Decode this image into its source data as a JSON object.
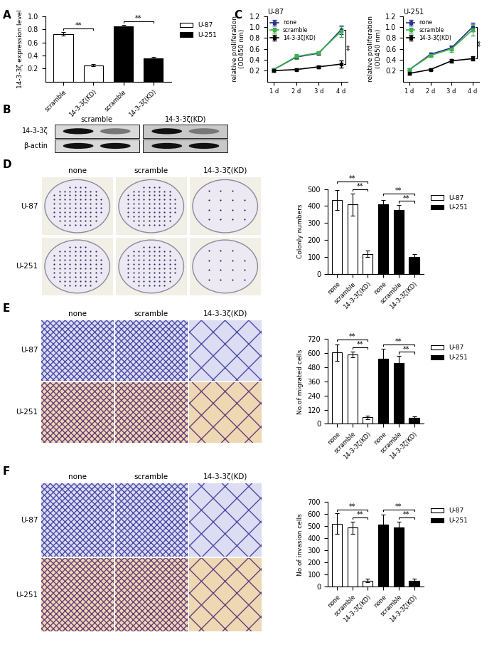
{
  "chart_data": [
    {
      "type": "bar",
      "panel": "A",
      "ylabel": "14-3-3ζ expression level",
      "categories": [
        "scramble",
        "14-3-3ζ(KD)",
        "scramble",
        "14-3-3ζ(KD)"
      ],
      "series": [
        {
          "name": "U-87",
          "color": "#ffffff",
          "values": [
            0.73,
            0.25,
            null,
            null
          ],
          "errors": [
            0.03,
            0.02,
            null,
            null
          ]
        },
        {
          "name": "U-251",
          "color": "#000000",
          "values": [
            null,
            null,
            0.85,
            0.35
          ],
          "errors": [
            null,
            null,
            0.02,
            0.03
          ]
        }
      ],
      "significance": [
        {
          "pair": [
            0,
            1
          ],
          "label": "**"
        },
        {
          "pair": [
            2,
            3
          ],
          "label": "**"
        }
      ],
      "ylim": [
        0,
        1.0
      ],
      "yticks": [
        0.2,
        0.4,
        0.6,
        0.8,
        1.0
      ],
      "legend": "right"
    },
    {
      "type": "line",
      "panel": "C",
      "title": "U-87",
      "ylabel": "relative proliferation\n(OD450 nm)",
      "categories": [
        "1 d",
        "2 d",
        "3 d",
        "4 d"
      ],
      "series": [
        {
          "name": "none",
          "color": "#2b2f8f",
          "marker": "square",
          "values": [
            0.22,
            0.45,
            0.52,
            0.95
          ],
          "errors": [
            0.02,
            0.03,
            0.03,
            0.08
          ]
        },
        {
          "name": "scramble",
          "color": "#3cb34a",
          "marker": "square",
          "values": [
            0.22,
            0.46,
            0.53,
            0.92
          ],
          "errors": [
            0.02,
            0.05,
            0.03,
            0.1
          ]
        },
        {
          "name": "14-3-3ζ(KD)",
          "color": "#000000",
          "marker": "square",
          "values": [
            0.2,
            0.22,
            0.27,
            0.32
          ],
          "errors": [
            0.02,
            0.02,
            0.03,
            0.06
          ]
        }
      ],
      "significance": [
        {
          "pair": [
            "none",
            "14-3-3ζ(KD)"
          ],
          "label": "**"
        }
      ],
      "ylim": [
        0,
        1.2
      ],
      "yticks": [
        0.2,
        0.4,
        0.6,
        0.8,
        1.0,
        1.2
      ],
      "legend": "upper left"
    },
    {
      "type": "line",
      "title": "U-251",
      "ylabel": "relative proliferation\n(OD450 nm)",
      "categories": [
        "1 d",
        "2 d",
        "3 d",
        "4 d"
      ],
      "series": [
        {
          "name": "none",
          "color": "#2b2f8f",
          "marker": "square",
          "values": [
            0.22,
            0.5,
            0.62,
            1.0
          ],
          "errors": [
            0.02,
            0.03,
            0.04,
            0.08
          ]
        },
        {
          "name": "scramble",
          "color": "#3cb34a",
          "marker": "square",
          "values": [
            0.22,
            0.48,
            0.6,
            0.95
          ],
          "errors": [
            0.02,
            0.03,
            0.05,
            0.1
          ]
        },
        {
          "name": "14-3-3ζ(KD)",
          "color": "#000000",
          "marker": "square",
          "values": [
            0.15,
            0.22,
            0.38,
            0.42
          ],
          "errors": [
            0.02,
            0.02,
            0.03,
            0.04
          ]
        }
      ],
      "significance": [
        {
          "pair": [
            "none",
            "14-3-3ζ(KD)"
          ],
          "label": "**"
        }
      ],
      "ylim": [
        0,
        1.2
      ],
      "yticks": [
        0.2,
        0.4,
        0.6,
        0.8,
        1.0,
        1.2
      ],
      "legend": "upper left"
    },
    {
      "type": "bar",
      "ylabel": "Colonly numbers",
      "categories": [
        "none",
        "scramble",
        "14-3-3ζ(KD)",
        "none",
        "scramble",
        "14-3-3ζ(KD)"
      ],
      "series": [
        {
          "name": "U-87",
          "color": "#ffffff",
          "values": [
            435,
            410,
            118,
            null,
            null,
            null
          ],
          "errors": [
            60,
            65,
            20,
            null,
            null,
            null
          ]
        },
        {
          "name": "U-251",
          "color": "#000000",
          "values": [
            null,
            null,
            null,
            410,
            375,
            100
          ],
          "errors": [
            null,
            null,
            null,
            25,
            30,
            18
          ]
        }
      ],
      "significance": [
        {
          "pair": [
            0,
            2
          ],
          "label": "**"
        },
        {
          "pair": [
            1,
            2
          ],
          "label": "**"
        },
        {
          "pair": [
            3,
            5
          ],
          "label": "**"
        },
        {
          "pair": [
            4,
            5
          ],
          "label": "**"
        }
      ],
      "ylim": [
        0,
        500
      ],
      "yticks": [
        0,
        100,
        200,
        300,
        400,
        500
      ],
      "legend": "right"
    },
    {
      "type": "bar",
      "ylabel": "No.of migrated cells",
      "categories": [
        "none",
        "scramble",
        "14-3-3ζ(KD)",
        "none",
        "scramble",
        "14-3-3ζ(KD)"
      ],
      "series": [
        {
          "name": "U-87",
          "color": "#ffffff",
          "values": [
            605,
            590,
            55,
            null,
            null,
            null
          ],
          "errors": [
            70,
            25,
            15,
            null,
            null,
            null
          ]
        },
        {
          "name": "U-251",
          "color": "#000000",
          "values": [
            null,
            null,
            null,
            555,
            515,
            50
          ],
          "errors": [
            null,
            null,
            null,
            80,
            60,
            15
          ]
        }
      ],
      "significance": [
        {
          "pair": [
            0,
            2
          ],
          "label": "**"
        },
        {
          "pair": [
            1,
            2
          ],
          "label": "**"
        },
        {
          "pair": [
            3,
            5
          ],
          "label": "**"
        },
        {
          "pair": [
            4,
            5
          ],
          "label": "**"
        }
      ],
      "ylim": [
        0,
        720
      ],
      "yticks": [
        0,
        120,
        240,
        360,
        480,
        600,
        720
      ],
      "legend": "right"
    },
    {
      "type": "bar",
      "ylabel": "No.of invasion cells",
      "categories": [
        "none",
        "scramble",
        "14-3-3ζ(KD)",
        "none",
        "scramble",
        "14-3-3ζ(KD)"
      ],
      "series": [
        {
          "name": "U-87",
          "color": "#ffffff",
          "values": [
            520,
            490,
            50,
            null,
            null,
            null
          ],
          "errors": [
            85,
            50,
            15,
            null,
            null,
            null
          ]
        },
        {
          "name": "U-251",
          "color": "#000000",
          "values": [
            null,
            null,
            null,
            515,
            490,
            50
          ],
          "errors": [
            null,
            null,
            null,
            80,
            50,
            15
          ]
        }
      ],
      "significance": [
        {
          "pair": [
            0,
            2
          ],
          "label": "**"
        },
        {
          "pair": [
            1,
            2
          ],
          "label": "**"
        },
        {
          "pair": [
            3,
            5
          ],
          "label": "**"
        },
        {
          "pair": [
            4,
            5
          ],
          "label": "**"
        }
      ],
      "ylim": [
        0,
        700
      ],
      "yticks": [
        0,
        100,
        200,
        300,
        400,
        500,
        600,
        700
      ],
      "legend": "right"
    }
  ],
  "images": [
    {
      "type": "blot",
      "panel": "B",
      "columns": [
        "scramble",
        "14-3-3ζ(KD)"
      ],
      "rows": [
        "14-3-3ζ",
        "β-actin"
      ]
    },
    {
      "type": "colony",
      "panel": "D",
      "columns": [
        "none",
        "scramble",
        "14-3-3ζ(KD)"
      ],
      "rows": [
        "U-87",
        "U-251"
      ]
    },
    {
      "type": "cells",
      "panel": "E",
      "columns": [
        "none",
        "scramble",
        "14-3-3ζ(KD)"
      ],
      "rows": [
        "U-87",
        "U-251"
      ]
    },
    {
      "type": "cells",
      "panel": "F",
      "columns": [
        "none",
        "scramble",
        "14-3-3ζ(KD)"
      ],
      "rows": [
        "U-87",
        "U-251"
      ]
    }
  ]
}
